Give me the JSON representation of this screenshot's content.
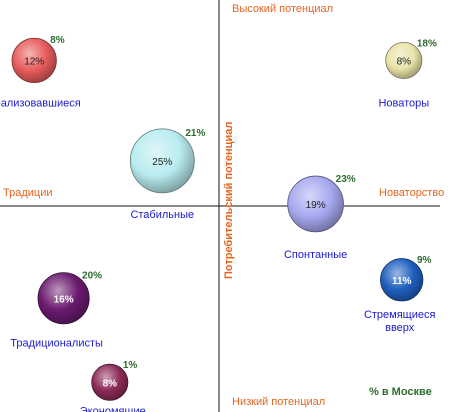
{
  "chart_data": {
    "type": "bubble",
    "axis_labels": {
      "top": "Высокий потенциал",
      "bottom": "Низкий потенциал",
      "left": "Традиции",
      "right": "Новаторство",
      "vertical_title": "Потребительский потенциал"
    },
    "footnote": "% в Москве",
    "segments": [
      {
        "label": "Реализовавшиеся",
        "share_total": "12%",
        "share_moscow": "8%",
        "color": "#e75b5b",
        "x": -0.88,
        "y": 0.71
      },
      {
        "label": "Новаторы",
        "share_total": "8%",
        "share_moscow": "18%",
        "color": "#e9e3a8",
        "x": 0.88,
        "y": 0.71
      },
      {
        "label": "Стабильные",
        "share_total": "25%",
        "share_moscow": "21%",
        "color": "#b8ecef",
        "x": -0.27,
        "y": 0.22
      },
      {
        "label": "Спонтанные",
        "share_total": "19%",
        "share_moscow": "23%",
        "color": "#a6a8ef",
        "x": 0.46,
        "y": 0.01
      },
      {
        "label": "Стремящиеся вверх",
        "share_total": "11%",
        "share_moscow": "9%",
        "color": "#1f5fbf",
        "x": 0.87,
        "y": -0.36
      },
      {
        "label": "Традиционалисты",
        "share_total": "16%",
        "share_moscow": "20%",
        "color": "#6a1a6e",
        "x": -0.74,
        "y": -0.45
      },
      {
        "label": "Экономящие",
        "share_total": "8%",
        "share_moscow": "1%",
        "color": "#8c2a58",
        "x": -0.52,
        "y": -0.86
      }
    ]
  }
}
